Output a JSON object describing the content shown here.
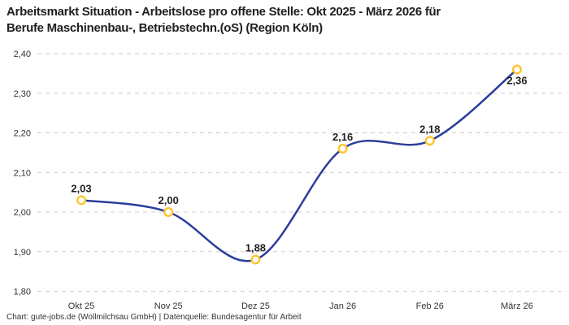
{
  "title": {
    "line1": "Arbeitsmarkt Situation - Arbeitslose pro offene Stelle: Okt 2025 - März 2026 für",
    "line2": "Berufe Maschinenbau-, Betriebstechn.(oS) (Region Köln)"
  },
  "footer": {
    "text": "Chart: gute-jobs.de (Wollmilchsau GmbH) | Datenquelle: Bundesagentur für Arbeit"
  },
  "chart_data": {
    "type": "line",
    "title": "Arbeitsmarkt Situation - Arbeitslose pro offene Stelle: Okt 2025 - März 2026 für Berufe Maschinenbau-, Betriebstechn.(oS) (Region Köln)",
    "categories": [
      "Okt 25",
      "Nov 25",
      "Dez 25",
      "Jan 26",
      "Feb 26",
      "März 26"
    ],
    "values": [
      2.03,
      2.0,
      1.88,
      2.16,
      2.18,
      2.36
    ],
    "point_labels": [
      "2,03",
      "2,00",
      "1,88",
      "2,16",
      "2,18",
      "2,36"
    ],
    "point_label_position": [
      "above",
      "above",
      "above",
      "above",
      "above",
      "below"
    ],
    "y_ticks": [
      1.8,
      1.9,
      2.0,
      2.1,
      2.2,
      2.3,
      2.4
    ],
    "y_tick_labels": [
      "1,80",
      "1,90",
      "2,00",
      "2,10",
      "2,20",
      "2,30",
      "2,40"
    ],
    "ylim": [
      1.8,
      2.4
    ],
    "xlabel": "",
    "ylabel": "",
    "legend": "none",
    "grid": "horizontal-dashed",
    "line_interpolation": "smooth",
    "colors": {
      "line": "#2A3D9B",
      "marker_stroke": "#FFC52D",
      "marker_fill": "#FFFFFF",
      "grid": "#CCCCCC",
      "title_text": "#1F1F1F",
      "axis_text": "#333333",
      "point_label_text": "#1F1F1F",
      "background": "#FFFFFF"
    }
  }
}
